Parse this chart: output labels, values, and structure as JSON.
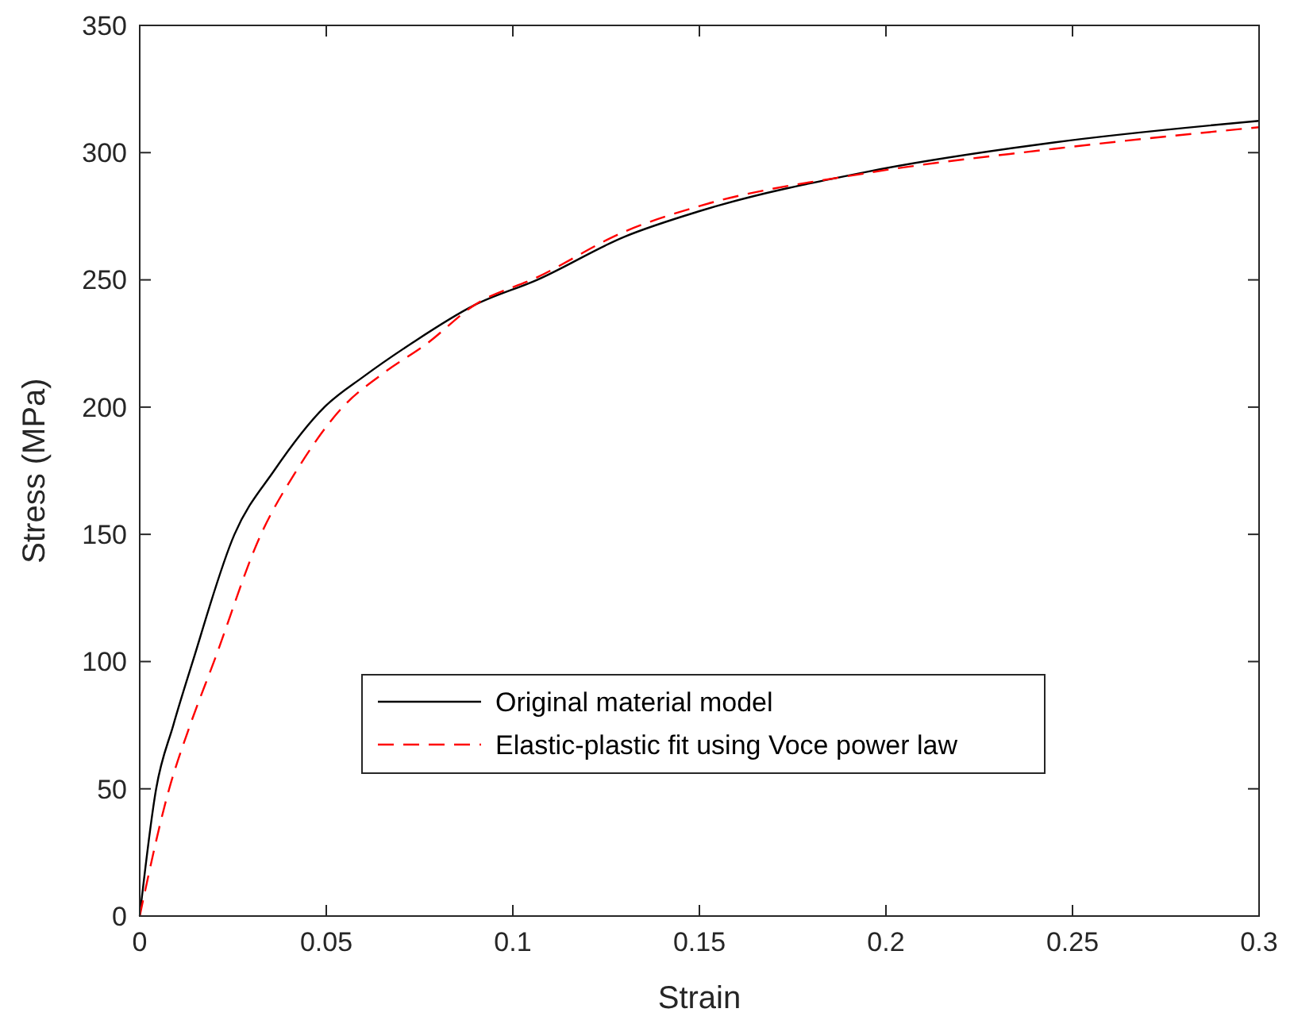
{
  "chart_data": {
    "type": "line",
    "xlabel": "Strain",
    "ylabel": "Stress (MPa)",
    "xlim": [
      0,
      0.3
    ],
    "ylim": [
      0,
      350
    ],
    "xticks": [
      0,
      0.05,
      0.1,
      0.15,
      0.2,
      0.25,
      0.3
    ],
    "yticks": [
      0,
      50,
      100,
      150,
      200,
      250,
      300,
      350
    ],
    "grid": false,
    "legend": "bottom",
    "marker": "none",
    "series": [
      {
        "name": "Original material model",
        "color": "#000000",
        "line_style": "solid",
        "x": [
          0,
          0.0044,
          0.009,
          0.0142,
          0.0254,
          0.036,
          0.0495,
          0.06,
          0.0728,
          0.0896,
          0.1065,
          0.13,
          0.15,
          0.195,
          0.245,
          0.3
        ],
        "values": [
          0,
          50,
          75,
          100,
          150,
          175,
          200,
          212,
          225,
          240,
          250,
          267,
          277,
          292.5,
          304,
          312.5
        ]
      },
      {
        "name": "Elastic-plastic fit using Voce power law",
        "color": "#ff0000",
        "line_style": "dashed",
        "x": [
          0,
          0.0079,
          0.0135,
          0.0199,
          0.0325,
          0.042,
          0.0544,
          0.065,
          0.077,
          0.0896,
          0.1065,
          0.13,
          0.15,
          0.195,
          0.245,
          0.3
        ],
        "values": [
          0,
          50,
          75,
          100,
          150,
          175,
          200,
          213,
          225,
          240,
          251,
          269,
          279,
          292,
          301.5,
          310
        ]
      }
    ]
  }
}
